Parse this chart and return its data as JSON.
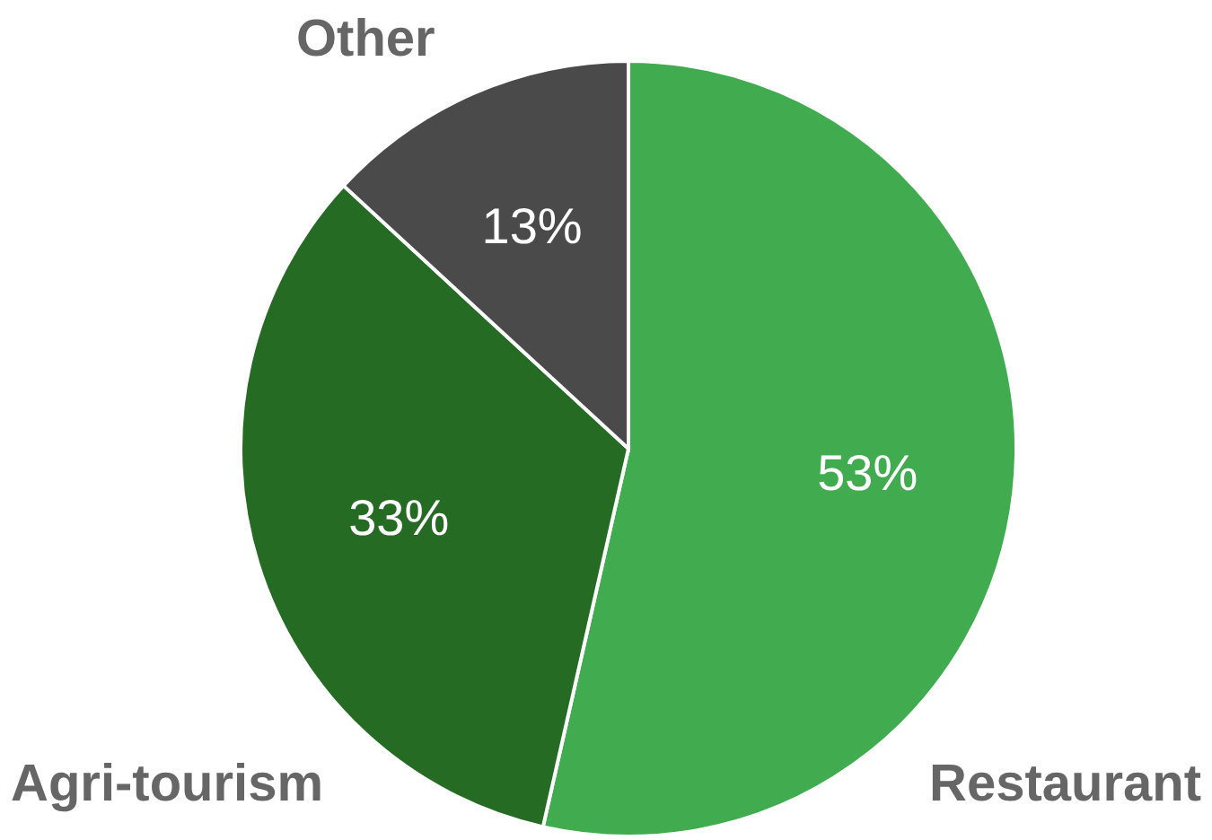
{
  "chart_data": {
    "type": "pie",
    "categories": [
      "Restaurant",
      "Agri-tourism",
      "Other"
    ],
    "values": [
      53,
      33,
      13
    ],
    "colors": [
      "#41ab4f",
      "#266b23",
      "#4a4a4a"
    ],
    "value_labels": [
      "53%",
      "33%",
      "13%"
    ]
  }
}
